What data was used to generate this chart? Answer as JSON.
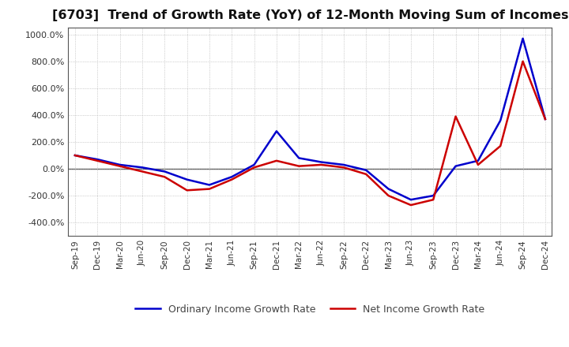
{
  "title": "[6703]  Trend of Growth Rate (YoY) of 12-Month Moving Sum of Incomes",
  "title_fontsize": 11.5,
  "ylim": [
    -500,
    1050
  ],
  "yticks": [
    -400,
    -200,
    0,
    200,
    400,
    600,
    800,
    1000
  ],
  "background_color": "#ffffff",
  "ordinary_color": "#0000cc",
  "net_color": "#cc0000",
  "legend_labels": [
    "Ordinary Income Growth Rate",
    "Net Income Growth Rate"
  ],
  "x_labels": [
    "Sep-19",
    "Dec-19",
    "Mar-20",
    "Jun-20",
    "Sep-20",
    "Dec-20",
    "Mar-21",
    "Jun-21",
    "Sep-21",
    "Dec-21",
    "Mar-22",
    "Jun-22",
    "Sep-22",
    "Dec-22",
    "Mar-23",
    "Jun-23",
    "Sep-23",
    "Dec-23",
    "Mar-24",
    "Jun-24",
    "Sep-24",
    "Dec-24"
  ],
  "ordinary_income": [
    100,
    70,
    30,
    10,
    -20,
    -80,
    -120,
    -60,
    30,
    280,
    80,
    50,
    30,
    -10,
    -150,
    -230,
    -200,
    20,
    60,
    360,
    970,
    370
  ],
  "net_income": [
    100,
    60,
    20,
    -20,
    -60,
    -160,
    -150,
    -80,
    10,
    60,
    20,
    30,
    10,
    -40,
    -200,
    -270,
    -230,
    390,
    30,
    170,
    800,
    370
  ],
  "grid_color": "#aaaaaa",
  "border_color": "#555555",
  "zero_line_color": "#555555"
}
